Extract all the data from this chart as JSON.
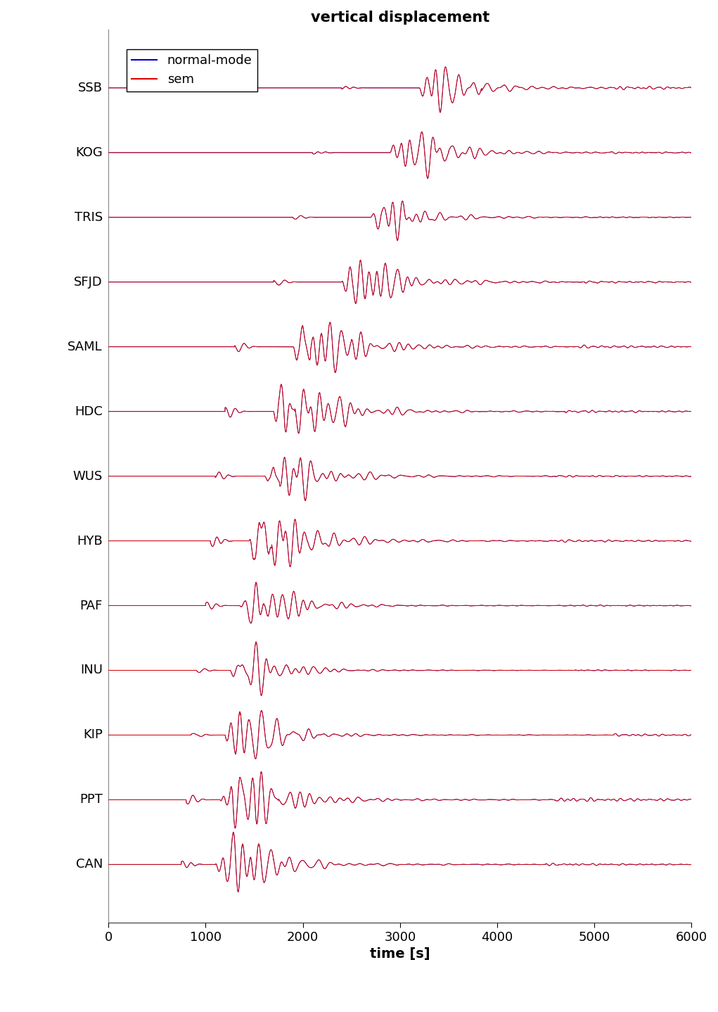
{
  "title": "vertical displacement",
  "xlabel": "time [s]",
  "xlim": [
    0,
    6000
  ],
  "xticks": [
    0,
    1000,
    2000,
    3000,
    4000,
    5000,
    6000
  ],
  "stations": [
    "SSB",
    "KOG",
    "TRIS",
    "SFJD",
    "SAML",
    "HDC",
    "WUS",
    "HYB",
    "PAF",
    "INU",
    "KIP",
    "PPT",
    "CAN"
  ],
  "normal_mode_color": "#0000cc",
  "sem_color": "#dd0000",
  "background_color": "#ffffff",
  "title_fontsize": 15,
  "label_fontsize": 14,
  "tick_fontsize": 13,
  "station_fontsize": 13,
  "legend_fontsize": 13,
  "line_width": 0.7,
  "figsize": [
    10.21,
    14.38
  ],
  "dpi": 100
}
